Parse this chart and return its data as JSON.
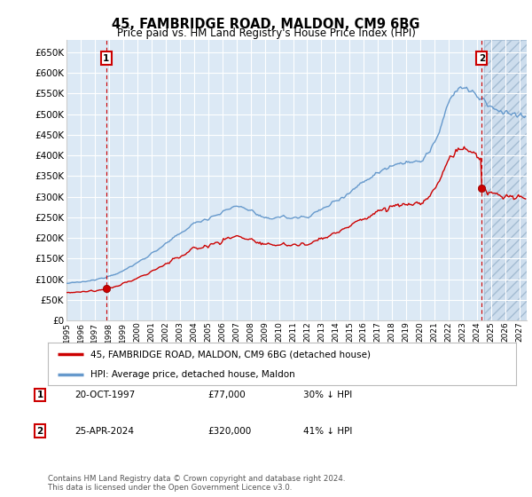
{
  "title": "45, FAMBRIDGE ROAD, MALDON, CM9 6BG",
  "subtitle": "Price paid vs. HM Land Registry's House Price Index (HPI)",
  "ylim": [
    0,
    680000
  ],
  "yticks": [
    0,
    50000,
    100000,
    150000,
    200000,
    250000,
    300000,
    350000,
    400000,
    450000,
    500000,
    550000,
    600000,
    650000
  ],
  "xlim_start": 1995.0,
  "xlim_end": 2027.5,
  "bg_color": "#dce9f5",
  "sale1_x": 1997.8,
  "sale1_y": 77000,
  "sale2_x": 2024.33,
  "sale2_y": 320000,
  "legend_label1": "45, FAMBRIDGE ROAD, MALDON, CM9 6BG (detached house)",
  "legend_label2": "HPI: Average price, detached house, Maldon",
  "table_row1": [
    "1",
    "20-OCT-1997",
    "£77,000",
    "30% ↓ HPI"
  ],
  "table_row2": [
    "2",
    "25-APR-2024",
    "£320,000",
    "41% ↓ HPI"
  ],
  "footnote": "Contains HM Land Registry data © Crown copyright and database right 2024.\nThis data is licensed under the Open Government Licence v3.0.",
  "red_line_color": "#cc0000",
  "blue_line_color": "#6699cc",
  "sale_dot_color": "#cc0000",
  "grid_color": "#ffffff",
  "sale1_box_label": "1",
  "sale2_box_label": "2"
}
